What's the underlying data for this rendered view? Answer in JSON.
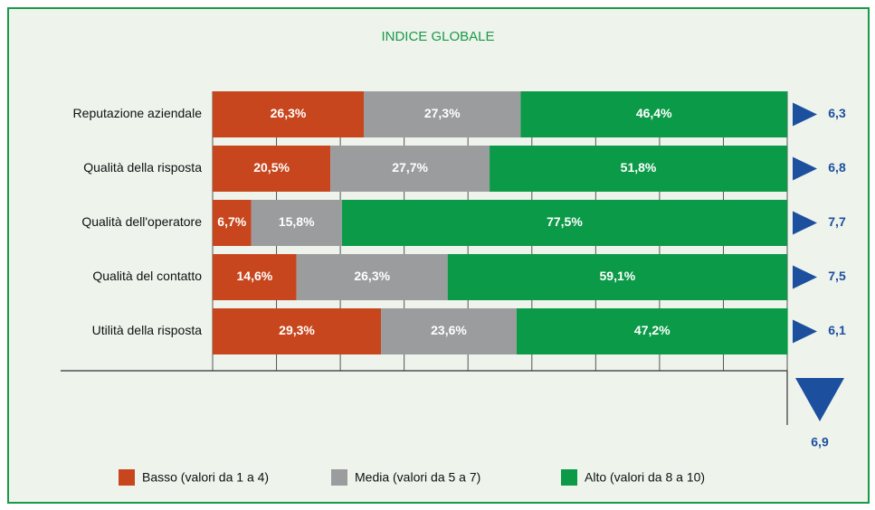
{
  "chart_data": {
    "type": "stacked_bar",
    "title": "INDICE GLOBALE",
    "categories": [
      "Reputazione aziendale",
      "Qualità della risposta",
      "Qualità dell'operatore",
      "Qualità del contatto",
      "Utilità della risposta"
    ],
    "series": [
      {
        "name": "Basso (valori da 1 a 4)",
        "color": "#c8461d",
        "values": [
          26.3,
          20.5,
          6.7,
          14.6,
          29.3
        ],
        "value_labels": [
          "26,3%",
          "20,5%",
          "6,7%",
          "14,6%",
          "29,3%"
        ]
      },
      {
        "name": "Media (valori da 5 a 7)",
        "color": "#9b9c9e",
        "values": [
          27.3,
          27.7,
          15.8,
          26.3,
          23.6
        ],
        "value_labels": [
          "27,3%",
          "27,7%",
          "15,8%",
          "26,3%",
          "23,6%"
        ]
      },
      {
        "name": "Alto (valori da 8 a 10)",
        "color": "#0b9a47",
        "values": [
          46.4,
          51.8,
          77.5,
          59.1,
          47.2
        ],
        "value_labels": [
          "46,4%",
          "51,8%",
          "77,5%",
          "59,1%",
          "47,2%"
        ]
      }
    ],
    "indices": {
      "values": [
        6.3,
        6.8,
        7.7,
        7.5,
        6.1
      ],
      "value_labels": [
        "6,3",
        "6,8",
        "7,7",
        "7,5",
        "6,1"
      ]
    },
    "overall_index": {
      "value": 6.9,
      "label": "6,9"
    },
    "xlim": [
      0,
      100
    ],
    "xticks": [
      0,
      11.11,
      22.22,
      33.33,
      44.44,
      55.56,
      66.67,
      77.78,
      88.89,
      100
    ],
    "grid": true,
    "legend": "bottom"
  }
}
